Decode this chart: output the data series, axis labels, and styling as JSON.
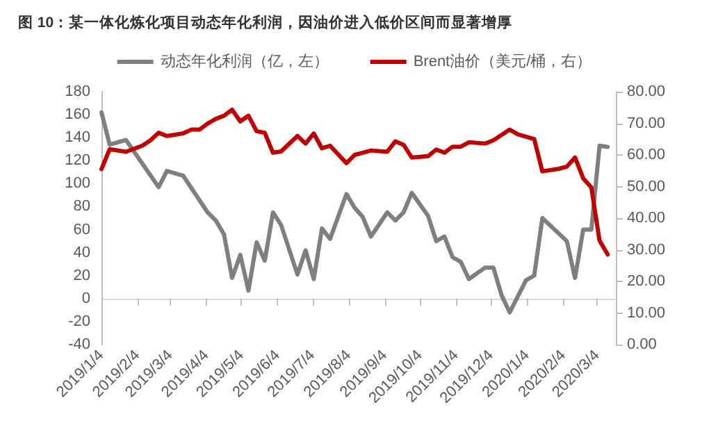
{
  "chart_data": {
    "type": "line",
    "title": "图 10：某一体化炼化项目动态年化利润，因油价进入低价区间而显著增厚",
    "series": [
      {
        "name": "动态年化利润（亿，左）",
        "color": "#7f7f7f",
        "x": [
          "2019-01-04",
          "2019-01-11",
          "2019-01-25",
          "2019-02-22",
          "2019-03-01",
          "2019-03-15",
          "2019-04-05",
          "2019-04-12",
          "2019-04-19",
          "2019-04-26",
          "2019-05-03",
          "2019-05-10",
          "2019-05-17",
          "2019-05-24",
          "2019-05-31",
          "2019-06-07",
          "2019-06-21",
          "2019-06-28",
          "2019-07-05",
          "2019-07-12",
          "2019-07-19",
          "2019-08-02",
          "2019-08-09",
          "2019-08-16",
          "2019-08-23",
          "2019-09-06",
          "2019-09-13",
          "2019-09-20",
          "2019-09-27",
          "2019-10-11",
          "2019-10-18",
          "2019-10-25",
          "2019-11-01",
          "2019-11-08",
          "2019-11-15",
          "2019-11-22",
          "2019-11-29",
          "2019-12-06",
          "2019-12-13",
          "2019-12-20",
          "2020-01-03",
          "2020-01-10",
          "2020-01-17",
          "2020-02-07",
          "2020-02-14",
          "2020-02-21",
          "2020-02-28",
          "2020-03-06",
          "2020-03-13"
        ],
        "values": [
          162,
          134,
          138,
          97,
          111,
          107,
          75,
          68,
          56,
          18,
          38,
          7,
          49,
          33,
          75,
          64,
          21,
          42,
          17,
          61,
          52,
          91,
          79,
          71,
          54,
          75,
          68,
          75,
          92,
          72,
          50,
          54,
          36,
          32,
          17,
          22,
          27,
          27,
          3,
          -12,
          16,
          20,
          70,
          50,
          18,
          60,
          60,
          133,
          132
        ]
      },
      {
        "name": "Brent油价（美元/桶，右）",
        "color": "#c00000",
        "axis": "y2",
        "x": [
          "2019-01-04",
          "2019-01-11",
          "2019-01-25",
          "2019-02-08",
          "2019-02-15",
          "2019-02-22",
          "2019-03-01",
          "2019-03-15",
          "2019-03-22",
          "2019-03-29",
          "2019-04-05",
          "2019-04-12",
          "2019-04-19",
          "2019-04-26",
          "2019-05-03",
          "2019-05-10",
          "2019-05-17",
          "2019-05-24",
          "2019-05-31",
          "2019-06-07",
          "2019-06-21",
          "2019-06-28",
          "2019-07-05",
          "2019-07-12",
          "2019-07-19",
          "2019-08-02",
          "2019-08-09",
          "2019-08-16",
          "2019-08-23",
          "2019-09-06",
          "2019-09-13",
          "2019-09-20",
          "2019-09-27",
          "2019-10-11",
          "2019-10-18",
          "2019-10-25",
          "2019-11-01",
          "2019-11-08",
          "2019-11-15",
          "2019-11-29",
          "2019-12-06",
          "2019-12-20",
          "2019-12-27",
          "2020-01-10",
          "2020-01-17",
          "2020-01-31",
          "2020-02-07",
          "2020-02-14",
          "2020-02-21",
          "2020-02-28",
          "2020-03-06",
          "2020-03-13"
        ],
        "values": [
          55.5,
          61.8,
          61,
          62.9,
          64.6,
          67,
          66,
          66.8,
          68,
          68,
          69.9,
          71.4,
          72.4,
          74.3,
          70.6,
          72.4,
          67.5,
          67,
          60.7,
          61.1,
          66,
          63.6,
          66.8,
          62.1,
          62.9,
          57.4,
          60,
          60.7,
          61.4,
          61,
          64.3,
          63.2,
          59.2,
          59.6,
          61.7,
          60.7,
          62.6,
          62.6,
          64,
          63.6,
          64.6,
          68,
          66.5,
          65,
          54.8,
          55.6,
          56.3,
          59.2,
          52.6,
          49.7,
          32.9,
          28.5
        ]
      }
    ],
    "xlim": [
      "2019-01-04",
      "2020-03-20"
    ],
    "xticks": [
      {
        "value": "2019-01-04",
        "label": "2019/1/4"
      },
      {
        "value": "2019-02-04",
        "label": "2019/2/4"
      },
      {
        "value": "2019-03-04",
        "label": "2019/3/4"
      },
      {
        "value": "2019-04-04",
        "label": "2019/4/4"
      },
      {
        "value": "2019-05-04",
        "label": "2019/5/4"
      },
      {
        "value": "2019-06-04",
        "label": "2019/6/4"
      },
      {
        "value": "2019-07-04",
        "label": "2019/7/4"
      },
      {
        "value": "2019-08-04",
        "label": "2019/8/4"
      },
      {
        "value": "2019-09-04",
        "label": "2019/9/4"
      },
      {
        "value": "2019-10-04",
        "label": "2019/10/4"
      },
      {
        "value": "2019-11-04",
        "label": "2019/11/4"
      },
      {
        "value": "2019-12-04",
        "label": "2019/12/4"
      },
      {
        "value": "2020-01-04",
        "label": "2020/1/4"
      },
      {
        "value": "2020-02-04",
        "label": "2020/2/4"
      },
      {
        "value": "2020-03-04",
        "label": "2020/3/4"
      }
    ],
    "ylim": [
      -40,
      180
    ],
    "yticks": [
      -40,
      -20,
      0,
      20,
      40,
      60,
      80,
      100,
      120,
      140,
      160,
      180
    ],
    "y2lim": [
      0,
      80
    ],
    "y2ticks": [
      {
        "value": 0,
        "label": "0.00"
      },
      {
        "value": 10,
        "label": "10.00"
      },
      {
        "value": 20,
        "label": "20.00"
      },
      {
        "value": 30,
        "label": "30.00"
      },
      {
        "value": 40,
        "label": "40.00"
      },
      {
        "value": 50,
        "label": "50.00"
      },
      {
        "value": 60,
        "label": "60.00"
      },
      {
        "value": 70,
        "label": "70.00"
      },
      {
        "value": 80,
        "label": "80.00"
      }
    ],
    "legend": "top",
    "marker": "none",
    "line_style": "solid"
  }
}
